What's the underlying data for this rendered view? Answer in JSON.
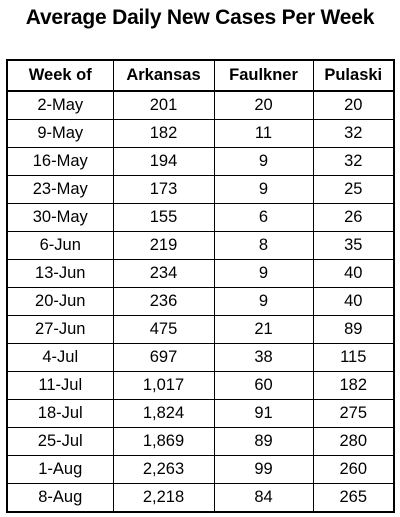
{
  "chart_data": {
    "type": "table",
    "title": "Average Daily New Cases Per Week",
    "columns": [
      "Week of",
      "Arkansas",
      "Faulkner",
      "Pulaski"
    ],
    "rows": [
      [
        "2-May",
        "201",
        "20",
        "20"
      ],
      [
        "9-May",
        "182",
        "11",
        "32"
      ],
      [
        "16-May",
        "194",
        "9",
        "32"
      ],
      [
        "23-May",
        "173",
        "9",
        "25"
      ],
      [
        "30-May",
        "155",
        "6",
        "26"
      ],
      [
        "6-Jun",
        "219",
        "8",
        "35"
      ],
      [
        "13-Jun",
        "234",
        "9",
        "40"
      ],
      [
        "20-Jun",
        "236",
        "9",
        "40"
      ],
      [
        "27-Jun",
        "475",
        "21",
        "89"
      ],
      [
        "4-Jul",
        "697",
        "38",
        "115"
      ],
      [
        "11-Jul",
        "1,017",
        "60",
        "182"
      ],
      [
        "18-Jul",
        "1,824",
        "91",
        "275"
      ],
      [
        "25-Jul",
        "1,869",
        "89",
        "280"
      ],
      [
        "1-Aug",
        "2,263",
        "99",
        "260"
      ],
      [
        "8-Aug",
        "2,218",
        "84",
        "265"
      ]
    ]
  }
}
